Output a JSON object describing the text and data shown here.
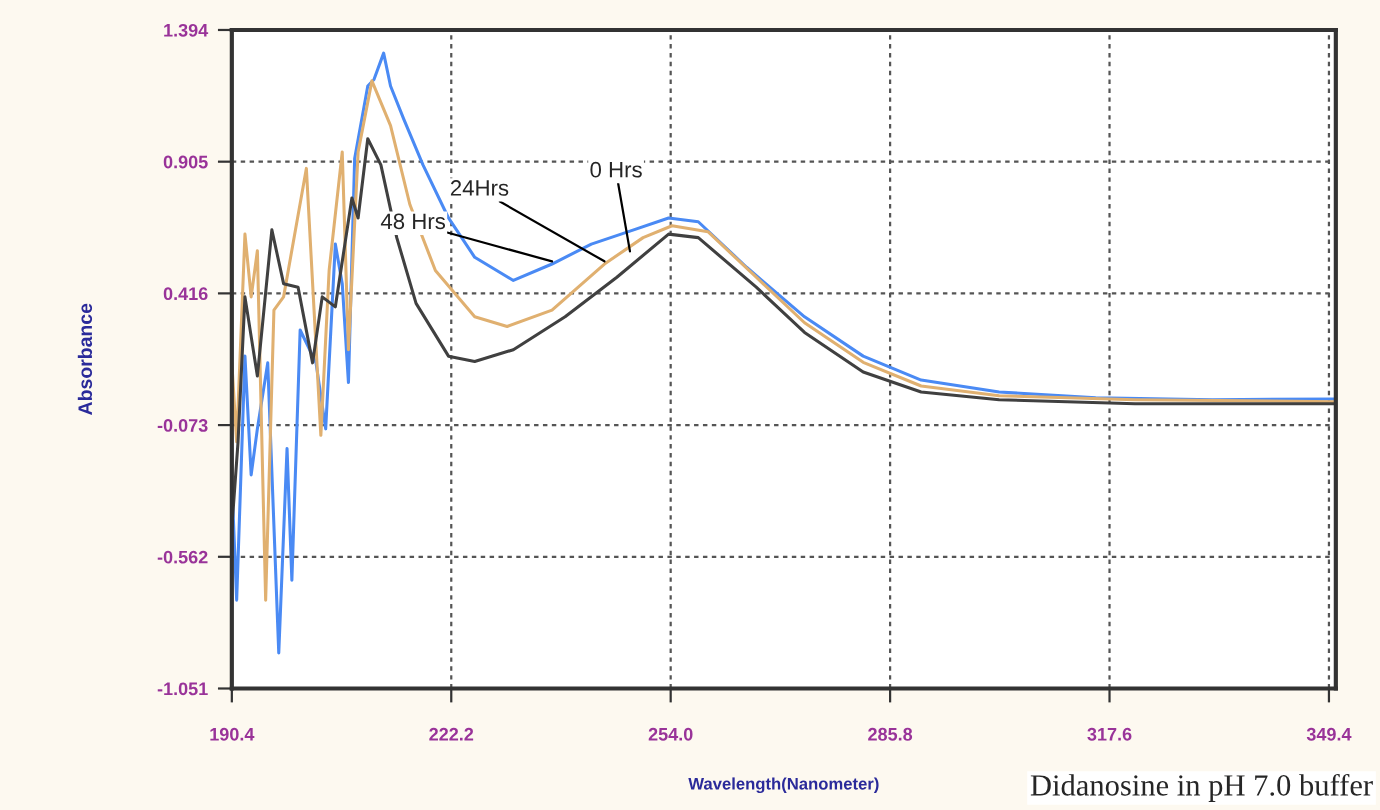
{
  "chart_data": {
    "type": "line",
    "xlabel": "Wavelength(Nanometer)",
    "ylabel": "Absorbance",
    "xlim": [
      190.4,
      350.4
    ],
    "ylim": [
      -1.051,
      1.394
    ],
    "xticks": [
      190.4,
      222.2,
      {
        "value": 254,
        "label": "254.0"
      },
      285.8,
      317.6,
      349.4
    ],
    "yticks": [
      -1.051,
      -0.562,
      -0.073,
      0.416,
      0.905,
      1.394
    ],
    "grid": true,
    "marker": "none",
    "line_style": "solid",
    "series": [
      {
        "color": "#4a8af4",
        "x": [
          190.4,
          191.1,
          192.3,
          193.2,
          194.1,
          195.6,
          197.2,
          198.4,
          199.1,
          200.3,
          202.6,
          204.0,
          205.4,
          206.4,
          207.3,
          208.2,
          210.1,
          211.0,
          212.4,
          213.4,
          215.3,
          218.1,
          221.8,
          225.6,
          231.2,
          236.8,
          242.5,
          248.1,
          253.7,
          258.0,
          265.0,
          273.4,
          281.9,
          290.3,
          301.6,
          315.6,
          332.5,
          350.4
        ],
        "values": [
          -0.282,
          -0.723,
          0.183,
          -0.258,
          -0.087,
          0.158,
          -0.919,
          -0.16,
          -0.649,
          0.28,
          0.158,
          -0.087,
          0.599,
          0.452,
          0.085,
          0.917,
          1.186,
          1.21,
          1.308,
          1.186,
          1.064,
          0.893,
          0.696,
          0.55,
          0.464,
          0.525,
          0.599,
          0.647,
          0.696,
          0.682,
          0.513,
          0.329,
          0.183,
          0.094,
          0.05,
          0.028,
          0.021,
          0.024
        ]
      },
      {
        "color": "#e0b070",
        "x": [
          190.4,
          191.1,
          192.3,
          193.2,
          194.1,
          195.3,
          196.5,
          197.9,
          201.2,
          203.3,
          204.5,
          206.4,
          207.3,
          208.7,
          210.7,
          213.4,
          216.2,
          219.9,
          225.6,
          230.3,
          236.8,
          244.4,
          250.0,
          254.2,
          259.4,
          266.4,
          273.4,
          281.9,
          290.3,
          301.6,
          321.3,
          350.4
        ],
        "values": [
          0.158,
          -0.135,
          0.636,
          0.403,
          0.574,
          -0.723,
          0.354,
          0.403,
          0.88,
          -0.111,
          0.501,
          0.941,
          0.207,
          0.941,
          1.205,
          1.039,
          0.746,
          0.501,
          0.329,
          0.293,
          0.354,
          0.525,
          0.623,
          0.667,
          0.645,
          0.476,
          0.307,
          0.16,
          0.072,
          0.036,
          0.021,
          0.014
        ]
      },
      {
        "color": "#404040",
        "x": [
          190.4,
          191.3,
          192.3,
          194.1,
          196.2,
          197.9,
          200.0,
          202.1,
          203.5,
          205.4,
          207.8,
          208.7,
          210.1,
          212.0,
          214.3,
          217.1,
          221.8,
          225.6,
          231.2,
          238.7,
          246.2,
          253.7,
          258.0,
          266.4,
          273.4,
          281.9,
          290.3,
          301.6,
          321.3,
          350.4
        ],
        "values": [
          -0.454,
          -0.135,
          0.403,
          0.109,
          0.652,
          0.452,
          0.439,
          0.158,
          0.403,
          0.366,
          0.77,
          0.696,
          0.99,
          0.893,
          0.623,
          0.379,
          0.183,
          0.163,
          0.207,
          0.329,
          0.476,
          0.636,
          0.623,
          0.439,
          0.271,
          0.124,
          0.05,
          0.021,
          0.006,
          0.006
        ]
      }
    ],
    "annotations": [
      {
        "text": "0 Hrs",
        "x": 248.1,
        "y": 0.572
      },
      {
        "text": "24Hrs",
        "x": 244.4,
        "y": 0.535
      },
      {
        "text": "48 Hrs",
        "x": 236.8,
        "y": 0.535
      },
      "Didanosine in pH 7.0 buffer"
    ]
  }
}
